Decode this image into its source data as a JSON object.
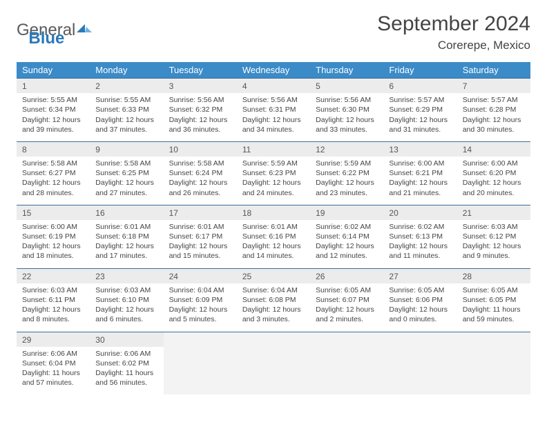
{
  "logo": {
    "part1": "General",
    "part2": "Blue"
  },
  "title": "September 2024",
  "location": "Corerepe, Mexico",
  "weekdays": [
    "Sunday",
    "Monday",
    "Tuesday",
    "Wednesday",
    "Thursday",
    "Friday",
    "Saturday"
  ],
  "colors": {
    "header_bg": "#3b8bc8",
    "header_text": "#ffffff",
    "daynum_bg": "#ececec",
    "rule": "#3b6e9c",
    "logo_blue": "#2a7ab9"
  },
  "weeks": [
    [
      {
        "n": "1",
        "sunrise": "Sunrise: 5:55 AM",
        "sunset": "Sunset: 6:34 PM",
        "day1": "Daylight: 12 hours",
        "day2": "and 39 minutes."
      },
      {
        "n": "2",
        "sunrise": "Sunrise: 5:55 AM",
        "sunset": "Sunset: 6:33 PM",
        "day1": "Daylight: 12 hours",
        "day2": "and 37 minutes."
      },
      {
        "n": "3",
        "sunrise": "Sunrise: 5:56 AM",
        "sunset": "Sunset: 6:32 PM",
        "day1": "Daylight: 12 hours",
        "day2": "and 36 minutes."
      },
      {
        "n": "4",
        "sunrise": "Sunrise: 5:56 AM",
        "sunset": "Sunset: 6:31 PM",
        "day1": "Daylight: 12 hours",
        "day2": "and 34 minutes."
      },
      {
        "n": "5",
        "sunrise": "Sunrise: 5:56 AM",
        "sunset": "Sunset: 6:30 PM",
        "day1": "Daylight: 12 hours",
        "day2": "and 33 minutes."
      },
      {
        "n": "6",
        "sunrise": "Sunrise: 5:57 AM",
        "sunset": "Sunset: 6:29 PM",
        "day1": "Daylight: 12 hours",
        "day2": "and 31 minutes."
      },
      {
        "n": "7",
        "sunrise": "Sunrise: 5:57 AM",
        "sunset": "Sunset: 6:28 PM",
        "day1": "Daylight: 12 hours",
        "day2": "and 30 minutes."
      }
    ],
    [
      {
        "n": "8",
        "sunrise": "Sunrise: 5:58 AM",
        "sunset": "Sunset: 6:27 PM",
        "day1": "Daylight: 12 hours",
        "day2": "and 28 minutes."
      },
      {
        "n": "9",
        "sunrise": "Sunrise: 5:58 AM",
        "sunset": "Sunset: 6:25 PM",
        "day1": "Daylight: 12 hours",
        "day2": "and 27 minutes."
      },
      {
        "n": "10",
        "sunrise": "Sunrise: 5:58 AM",
        "sunset": "Sunset: 6:24 PM",
        "day1": "Daylight: 12 hours",
        "day2": "and 26 minutes."
      },
      {
        "n": "11",
        "sunrise": "Sunrise: 5:59 AM",
        "sunset": "Sunset: 6:23 PM",
        "day1": "Daylight: 12 hours",
        "day2": "and 24 minutes."
      },
      {
        "n": "12",
        "sunrise": "Sunrise: 5:59 AM",
        "sunset": "Sunset: 6:22 PM",
        "day1": "Daylight: 12 hours",
        "day2": "and 23 minutes."
      },
      {
        "n": "13",
        "sunrise": "Sunrise: 6:00 AM",
        "sunset": "Sunset: 6:21 PM",
        "day1": "Daylight: 12 hours",
        "day2": "and 21 minutes."
      },
      {
        "n": "14",
        "sunrise": "Sunrise: 6:00 AM",
        "sunset": "Sunset: 6:20 PM",
        "day1": "Daylight: 12 hours",
        "day2": "and 20 minutes."
      }
    ],
    [
      {
        "n": "15",
        "sunrise": "Sunrise: 6:00 AM",
        "sunset": "Sunset: 6:19 PM",
        "day1": "Daylight: 12 hours",
        "day2": "and 18 minutes."
      },
      {
        "n": "16",
        "sunrise": "Sunrise: 6:01 AM",
        "sunset": "Sunset: 6:18 PM",
        "day1": "Daylight: 12 hours",
        "day2": "and 17 minutes."
      },
      {
        "n": "17",
        "sunrise": "Sunrise: 6:01 AM",
        "sunset": "Sunset: 6:17 PM",
        "day1": "Daylight: 12 hours",
        "day2": "and 15 minutes."
      },
      {
        "n": "18",
        "sunrise": "Sunrise: 6:01 AM",
        "sunset": "Sunset: 6:16 PM",
        "day1": "Daylight: 12 hours",
        "day2": "and 14 minutes."
      },
      {
        "n": "19",
        "sunrise": "Sunrise: 6:02 AM",
        "sunset": "Sunset: 6:14 PM",
        "day1": "Daylight: 12 hours",
        "day2": "and 12 minutes."
      },
      {
        "n": "20",
        "sunrise": "Sunrise: 6:02 AM",
        "sunset": "Sunset: 6:13 PM",
        "day1": "Daylight: 12 hours",
        "day2": "and 11 minutes."
      },
      {
        "n": "21",
        "sunrise": "Sunrise: 6:03 AM",
        "sunset": "Sunset: 6:12 PM",
        "day1": "Daylight: 12 hours",
        "day2": "and 9 minutes."
      }
    ],
    [
      {
        "n": "22",
        "sunrise": "Sunrise: 6:03 AM",
        "sunset": "Sunset: 6:11 PM",
        "day1": "Daylight: 12 hours",
        "day2": "and 8 minutes."
      },
      {
        "n": "23",
        "sunrise": "Sunrise: 6:03 AM",
        "sunset": "Sunset: 6:10 PM",
        "day1": "Daylight: 12 hours",
        "day2": "and 6 minutes."
      },
      {
        "n": "24",
        "sunrise": "Sunrise: 6:04 AM",
        "sunset": "Sunset: 6:09 PM",
        "day1": "Daylight: 12 hours",
        "day2": "and 5 minutes."
      },
      {
        "n": "25",
        "sunrise": "Sunrise: 6:04 AM",
        "sunset": "Sunset: 6:08 PM",
        "day1": "Daylight: 12 hours",
        "day2": "and 3 minutes."
      },
      {
        "n": "26",
        "sunrise": "Sunrise: 6:05 AM",
        "sunset": "Sunset: 6:07 PM",
        "day1": "Daylight: 12 hours",
        "day2": "and 2 minutes."
      },
      {
        "n": "27",
        "sunrise": "Sunrise: 6:05 AM",
        "sunset": "Sunset: 6:06 PM",
        "day1": "Daylight: 12 hours",
        "day2": "and 0 minutes."
      },
      {
        "n": "28",
        "sunrise": "Sunrise: 6:05 AM",
        "sunset": "Sunset: 6:05 PM",
        "day1": "Daylight: 11 hours",
        "day2": "and 59 minutes."
      }
    ],
    [
      {
        "n": "29",
        "sunrise": "Sunrise: 6:06 AM",
        "sunset": "Sunset: 6:04 PM",
        "day1": "Daylight: 11 hours",
        "day2": "and 57 minutes."
      },
      {
        "n": "30",
        "sunrise": "Sunrise: 6:06 AM",
        "sunset": "Sunset: 6:02 PM",
        "day1": "Daylight: 11 hours",
        "day2": "and 56 minutes."
      },
      null,
      null,
      null,
      null,
      null
    ]
  ]
}
